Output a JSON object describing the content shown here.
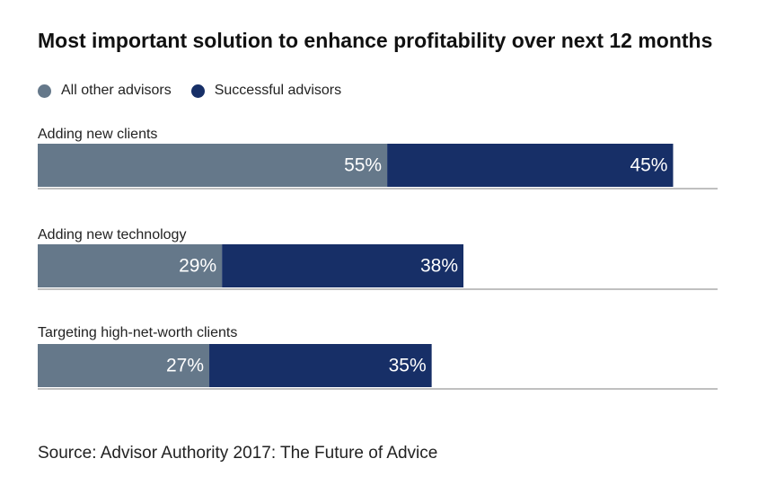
{
  "title": "Most important solution to enhance profitability over next 12 months",
  "source": "Source: Advisor Authority 2017: The Future of Advice",
  "colors": {
    "all_other": "#65788a",
    "successful": "#172f67",
    "axis": "#9a9a9a"
  },
  "chart_data": {
    "type": "bar",
    "stacked": true,
    "orientation": "horizontal",
    "title": "Most important solution to enhance profitability over next 12 months",
    "categories": [
      "Adding new clients",
      "Adding new technology",
      "Targeting high-net-worth clients"
    ],
    "series": [
      {
        "name": "All other advisors",
        "values": [
          55,
          29,
          27
        ],
        "labels": [
          "55%",
          "29%",
          "27%"
        ]
      },
      {
        "name": "Successful advisors",
        "values": [
          45,
          38,
          35
        ],
        "labels": [
          "45%",
          "38%",
          "35%"
        ]
      }
    ],
    "xlim": [
      0,
      107
    ],
    "grid": false,
    "legend": "top-left"
  }
}
